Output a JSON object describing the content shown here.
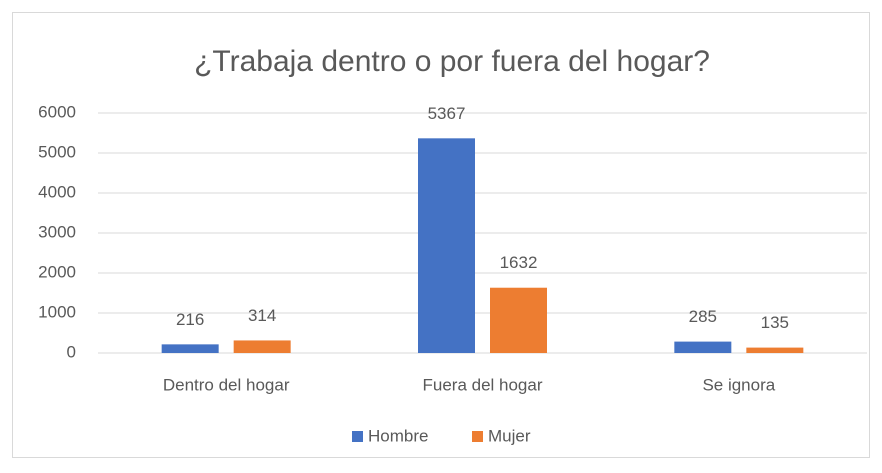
{
  "chart_data": {
    "type": "bar",
    "title": "¿Trabaja dentro o por fuera del hogar?",
    "categories": [
      "Dentro del hogar",
      "Fuera del hogar",
      "Se ignora"
    ],
    "series": [
      {
        "name": "Hombre",
        "color": "#4472c4",
        "values": [
          216,
          5367,
          285
        ]
      },
      {
        "name": "Mujer",
        "color": "#ed7d31",
        "values": [
          314,
          1632,
          135
        ]
      }
    ],
    "ylim": [
      0,
      6000
    ],
    "yticks": [
      0,
      1000,
      2000,
      3000,
      4000,
      5000,
      6000
    ],
    "grid": true,
    "legend": "bottom"
  }
}
